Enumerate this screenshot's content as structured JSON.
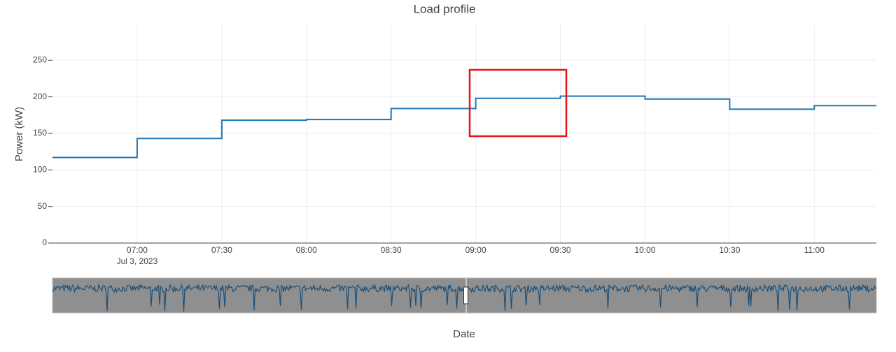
{
  "chart_data": {
    "type": "line",
    "title": "Load profile",
    "x_label": "Date",
    "y_label": "Power (kW)",
    "line_shape": "hv",
    "x": [
      "06:30",
      "07:00",
      "07:30",
      "08:00",
      "08:30",
      "09:00",
      "09:30",
      "10:00",
      "10:30",
      "11:00",
      "11:22"
    ],
    "series": [
      {
        "name": "Power",
        "color": "#1f77b4",
        "values": [
          117,
          143,
          168,
          169,
          184,
          198,
          201,
          197,
          183,
          188,
          188
        ]
      }
    ],
    "xlim": [
      "06:30",
      "11:22"
    ],
    "xticks": [
      "07:00",
      "07:30",
      "08:00",
      "08:30",
      "09:00",
      "09:30",
      "10:00",
      "10:30",
      "11:00"
    ],
    "x_date_label": "Jul 3, 2023",
    "ylim": [
      0,
      299
    ],
    "yticks": [
      0,
      50,
      100,
      150,
      200,
      250
    ],
    "grid": true
  }
}
